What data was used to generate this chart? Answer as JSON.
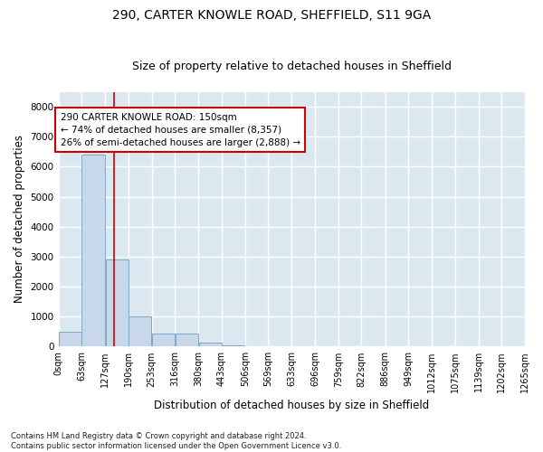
{
  "title_line1": "290, CARTER KNOWLE ROAD, SHEFFIELD, S11 9GA",
  "title_line2": "Size of property relative to detached houses in Sheffield",
  "xlabel": "Distribution of detached houses by size in Sheffield",
  "ylabel": "Number of detached properties",
  "footnote": "Contains HM Land Registry data © Crown copyright and database right 2024.\nContains public sector information licensed under the Open Government Licence v3.0.",
  "bin_edges": [
    0,
    63,
    127,
    190,
    253,
    316,
    380,
    443,
    506,
    569,
    633,
    696,
    759,
    822,
    886,
    949,
    1012,
    1075,
    1139,
    1202,
    1265
  ],
  "bin_labels": [
    "0sqm",
    "63sqm",
    "127sqm",
    "190sqm",
    "253sqm",
    "316sqm",
    "380sqm",
    "443sqm",
    "506sqm",
    "569sqm",
    "633sqm",
    "696sqm",
    "759sqm",
    "822sqm",
    "886sqm",
    "949sqm",
    "1012sqm",
    "1075sqm",
    "1139sqm",
    "1202sqm",
    "1265sqm"
  ],
  "bar_heights": [
    500,
    6400,
    2900,
    1000,
    430,
    430,
    130,
    50,
    0,
    0,
    0,
    0,
    0,
    0,
    0,
    0,
    0,
    0,
    0,
    0
  ],
  "bar_color": "#c8d8ea",
  "bar_edge_color": "#7aaac8",
  "vline_x": 150,
  "vline_color": "#cc0000",
  "ylim": [
    0,
    8500
  ],
  "yticks": [
    0,
    1000,
    2000,
    3000,
    4000,
    5000,
    6000,
    7000,
    8000
  ],
  "annotation_text": "290 CARTER KNOWLE ROAD: 150sqm\n← 74% of detached houses are smaller (8,357)\n26% of semi-detached houses are larger (2,888) →",
  "annotation_box_facecolor": "#ffffff",
  "annotation_box_edgecolor": "#cc0000",
  "plot_bg_color": "#dce8f0",
  "fig_bg_color": "#ffffff",
  "grid_color": "#ffffff",
  "title_fontsize": 10,
  "subtitle_fontsize": 9,
  "axis_label_fontsize": 8.5,
  "tick_fontsize": 7,
  "annotation_fontsize": 7.5,
  "footnote_fontsize": 6
}
